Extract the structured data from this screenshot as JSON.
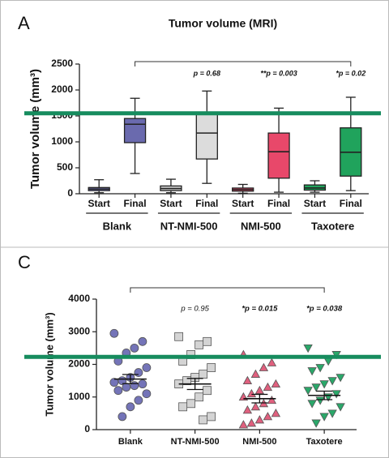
{
  "chart_data": [
    {
      "type": "box",
      "panel": "A",
      "title": "Tumor volume (MRI)",
      "ylabel": "Tumor volume (mm³)",
      "categories": [
        "Start",
        "Final",
        "Start",
        "Final",
        "Start",
        "Final",
        "Start",
        "Final"
      ],
      "groups": [
        "Blank",
        "NT-NMI-500",
        "NMI-500",
        "Taxotere"
      ],
      "boxes": [
        {
          "min": 20,
          "q1": 60,
          "median": 90,
          "q3": 120,
          "max": 270,
          "color": "#7474b8"
        },
        {
          "min": 390,
          "q1": 985,
          "median": 1340,
          "q3": 1450,
          "max": 1840,
          "color": "#6a6aae"
        },
        {
          "min": 20,
          "q1": 60,
          "median": 100,
          "q3": 150,
          "max": 280,
          "color": "#cfcfcf"
        },
        {
          "min": 200,
          "q1": 670,
          "median": 1170,
          "q3": 1550,
          "max": 1980,
          "color": "#dcdcdc"
        },
        {
          "min": 10,
          "q1": 50,
          "median": 80,
          "q3": 110,
          "max": 180,
          "color": "#e8486a"
        },
        {
          "min": 30,
          "q1": 300,
          "median": 810,
          "q3": 1170,
          "max": 1650,
          "color": "#e8486a"
        },
        {
          "min": 30,
          "q1": 70,
          "median": 110,
          "q3": 170,
          "max": 250,
          "color": "#20a35c"
        },
        {
          "min": 60,
          "q1": 340,
          "median": 800,
          "q3": 1270,
          "max": 1860,
          "color": "#20a35c"
        }
      ],
      "annotations": [
        "p = 0.68",
        "**p = 0.003",
        "*p = 0.02"
      ],
      "ylim": [
        0,
        2500
      ],
      "yticks": [
        0,
        500,
        1000,
        1500,
        2000,
        2500
      ],
      "reference_line": {
        "value": 1550,
        "color": "#168c5e"
      }
    },
    {
      "type": "strip",
      "panel": "C",
      "ylabel": "Tumor volume (mm³)",
      "categories": [
        "Blank",
        "NT-NMI-500",
        "NMI-500",
        "Taxotere"
      ],
      "series": [
        {
          "color": "#7474b8",
          "marker": "circle",
          "mean": 1550,
          "sem": 140,
          "values": [
            2950,
            2700,
            2500,
            2350,
            2100,
            1900,
            1750,
            1600,
            1500,
            1450,
            1400,
            1350,
            1300,
            1200,
            1100,
            900,
            700,
            400
          ]
        },
        {
          "color": "#d4d4d4",
          "marker": "square",
          "mean": 1400,
          "sem": 170,
          "values": [
            2850,
            2700,
            2600,
            2300,
            2100,
            1900,
            1700,
            1600,
            1500,
            1400,
            1200,
            1000,
            800,
            700,
            400,
            300
          ]
        },
        {
          "color": "#e0607e",
          "marker": "triangle-up",
          "mean": 950,
          "sem": 130,
          "values": [
            2300,
            2050,
            1900,
            1700,
            1500,
            1400,
            1300,
            1200,
            1100,
            1000,
            900,
            800,
            700,
            600,
            500,
            400,
            300,
            200,
            150
          ]
        },
        {
          "color": "#2aa86a",
          "marker": "triangle-down",
          "mean": 1050,
          "sem": 130,
          "values": [
            2500,
            2300,
            2100,
            1900,
            1800,
            1600,
            1500,
            1400,
            1300,
            1200,
            1100,
            1000,
            900,
            800,
            700,
            500,
            400,
            200
          ]
        }
      ],
      "annotations": [
        "p = 0.95",
        "*p = 0.015",
        "*p = 0.038"
      ],
      "ylim": [
        0,
        4000
      ],
      "yticks": [
        0,
        1000,
        2000,
        3000,
        4000
      ],
      "reference_line": {
        "value": 2230,
        "color": "#168c5e"
      }
    }
  ]
}
